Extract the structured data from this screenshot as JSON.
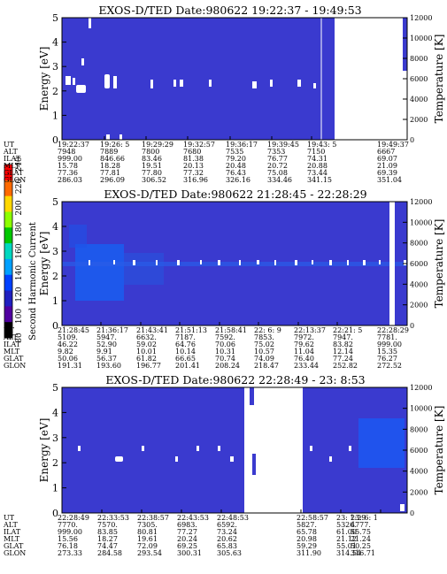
{
  "colorbar": {
    "label": "Second Harmonic Current",
    "ticks": [
      "240",
      "220",
      "200",
      "180",
      "160",
      "140",
      "120",
      "100",
      "80"
    ],
    "colors": [
      "#ff0000",
      "#ff6a00",
      "#ffd800",
      "#8dff00",
      "#00c800",
      "#00d8c0",
      "#00a0ff",
      "#0040ff",
      "#2020c0",
      "#5000a0",
      "#000000"
    ]
  },
  "panels": [
    {
      "title": "EXOS-D/TED   Date:980622  19:22:37 - 19:49:53",
      "ylabel": "Energy [eV]",
      "y2label": "Temperature [K]",
      "yticks": [
        "0",
        "1",
        "2",
        "3",
        "4",
        "5"
      ],
      "y2ticks": [
        "0",
        "2000",
        "4000",
        "6000",
        "8000",
        "10000",
        "12000"
      ],
      "data_end": 0.79,
      "table": {
        "row_labels": [
          "UT",
          "ALT",
          "ILAT",
          "MLT",
          "GLAT",
          "GLON"
        ],
        "columns": [
          [
            "19:22:37",
            "7948",
            "999.00",
            "15.78",
            "77.36",
            "286.03"
          ],
          [
            "19:26: 5",
            "7889",
            "846.66",
            "18.28",
            "77.81",
            "296.09"
          ],
          [
            "19:29:29",
            "7800",
            "83.46",
            "19.51",
            "77.80",
            "306.52"
          ],
          [
            "19:32:57",
            "7680",
            "81.38",
            "20.13",
            "77.32",
            "316.96"
          ],
          [
            "19:36:17",
            "7535",
            "79.20",
            "20.48",
            "76.43",
            "326.16"
          ],
          [
            "19:39:45",
            "7353",
            "76.77",
            "20.72",
            "75.08",
            "334.46"
          ],
          [
            "19:43: 5",
            "7150",
            "74.31",
            "20.88",
            "73.44",
            "341.15"
          ],
          [
            "19:49:37",
            "6667",
            "69.07",
            "21.09",
            "69.39",
            "351.04"
          ]
        ]
      }
    },
    {
      "title": "EXOS-D/TED   Date:980622  21:28:45 - 22:28:29",
      "ylabel": "Energy [eV]",
      "y2label": "Temperature [K]",
      "yticks": [
        "0",
        "1",
        "2",
        "3",
        "4",
        "5"
      ],
      "y2ticks": [
        "0",
        "2000",
        "4000",
        "6000",
        "8000",
        "10000",
        "12000"
      ],
      "table": {
        "row_labels": [
          "UT",
          "ALT",
          "ILAT",
          "MLT",
          "GLAT",
          "GLON"
        ],
        "columns": [
          [
            "21:28:45",
            "5109.",
            "46.22",
            "9.82",
            "50.06",
            "191.31"
          ],
          [
            "21:36:17",
            "5947.",
            "52.90",
            "9.91",
            "56.37",
            "193.60"
          ],
          [
            "21:43:41",
            "6632.",
            "59.02",
            "10.01",
            "61.82",
            "196.77"
          ],
          [
            "21:51:13",
            "7187.",
            "64.76",
            "10.14",
            "66.65",
            "201.41"
          ],
          [
            "21:58:41",
            "7592.",
            "70.06",
            "10.31",
            "70.74",
            "208.24"
          ],
          [
            "22: 6: 9",
            "7853.",
            "75.02",
            "10.57",
            "74.09",
            "218.47"
          ],
          [
            "22:13:37",
            "7972.",
            "79.62",
            "11.04",
            "76.40",
            "233.44"
          ],
          [
            "22:21: 5",
            "7947.",
            "83.82",
            "12.14",
            "77.24",
            "252.82"
          ],
          [
            "22:28:29",
            "7781.",
            "999.00",
            "15.35",
            "76.27",
            "272.52"
          ]
        ]
      }
    },
    {
      "title": "EXOS-D/TED   Date:980622  22:28:49 - 23: 8:53",
      "ylabel": "Energy [eV]",
      "y2label": "Temperature [K]",
      "yticks": [
        "0",
        "1",
        "2",
        "3",
        "4",
        "5"
      ],
      "y2ticks": [
        "0",
        "2000",
        "4000",
        "6000",
        "8000",
        "10000",
        "12000"
      ],
      "table": {
        "row_labels": [
          "UT",
          "ALT",
          "ILAT",
          "MLT",
          "GLAT",
          "GLON"
        ],
        "columns": [
          [
            "22:28:49",
            "7770.",
            "999.00",
            "15.56",
            "76.18",
            "273.33"
          ],
          [
            "22:33:53",
            "7570.",
            "83.85",
            "18.27",
            "74.47",
            "284.58"
          ],
          [
            "22:38:57",
            "7305.",
            "80.81",
            "19.61",
            "72.09",
            "293.54"
          ],
          [
            "22:43:53",
            "6983.",
            "77.27",
            "20.24",
            "69.25",
            "300.31"
          ],
          [
            "22:48:53",
            "6592.",
            "73.24",
            "20.62",
            "65.83",
            "305.63"
          ],
          [
            "22:58:57",
            "5827.",
            "65.78",
            "20.98",
            "59.29",
            "311.90"
          ],
          [
            "23: 1:29",
            "5326.",
            "61.00",
            "21.12",
            "55.01",
            "314.54"
          ],
          [
            "23: 6: 1",
            "4777.",
            "55.75",
            "21.24",
            "50.25",
            "316.71"
          ]
        ]
      }
    }
  ]
}
